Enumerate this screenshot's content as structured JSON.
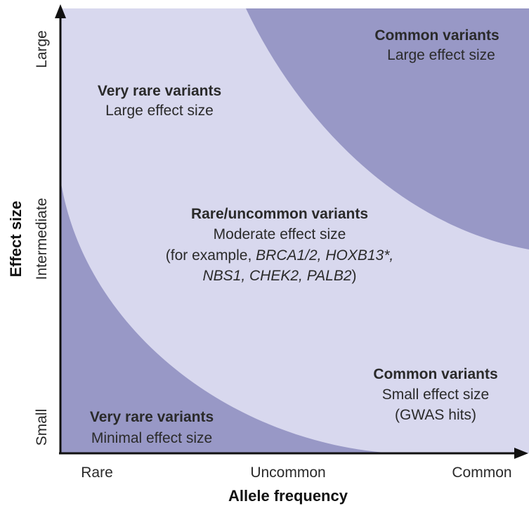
{
  "colors": {
    "light_region": "#d8d8ee",
    "dark_region": "#9898c6",
    "axis": "#111111",
    "text": "#2a2a2a"
  },
  "axes": {
    "x_title": "Allele frequency",
    "y_title": "Effect size",
    "x_ticks": [
      "Rare",
      "Uncommon",
      "Common"
    ],
    "y_ticks": [
      "Small",
      "Intermediate",
      "Large"
    ]
  },
  "regions": {
    "very_rare_large": {
      "title": "Very rare variants",
      "subtitle": "Large effect size"
    },
    "common_large": {
      "title": "Common variants",
      "subtitle": "Large effect size"
    },
    "rare_uncommon": {
      "title": "Rare/uncommon variants",
      "subtitle": "Moderate effect size",
      "example_prefix": "(for example, ",
      "genes_line1": "BRCA1/2, HOXB13*,",
      "genes_line2": "NBS1, CHEK2, PALB2",
      "example_suffix": ")"
    },
    "common_small": {
      "title": "Common variants",
      "subtitle": "Small effect size",
      "note": "(GWAS hits)"
    },
    "very_rare_minimal": {
      "title": "Very rare variants",
      "subtitle": "Minimal effect size"
    }
  }
}
